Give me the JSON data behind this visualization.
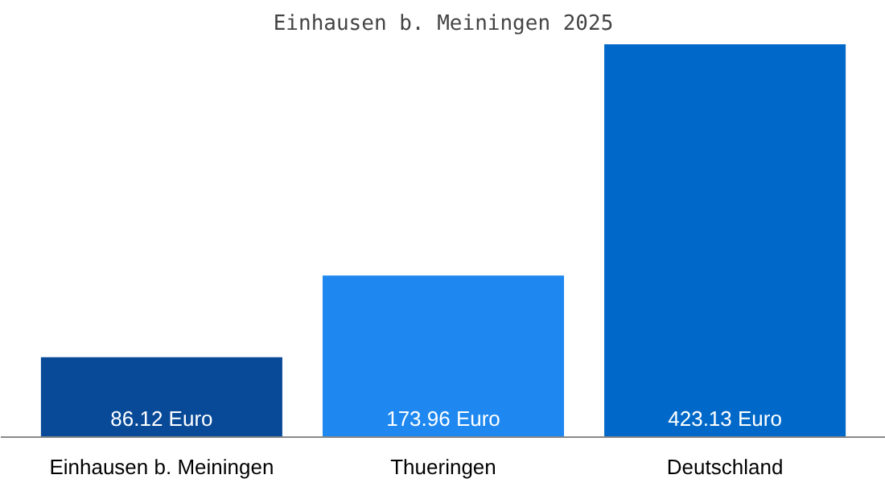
{
  "chart_data": {
    "type": "bar",
    "title": "Einhausen b. Meiningen 2025",
    "categories": [
      "Einhausen b. Meiningen",
      "Thueringen",
      "Deutschland"
    ],
    "values": [
      86.12,
      173.96,
      423.13
    ],
    "colors": [
      "#084a98",
      "#1e88f0",
      "#0068c8"
    ],
    "value_labels": [
      "86.12 Euro",
      "173.96 Euro",
      "423.13 Euro"
    ],
    "ylim": [
      0,
      423.13
    ],
    "grid": false
  }
}
